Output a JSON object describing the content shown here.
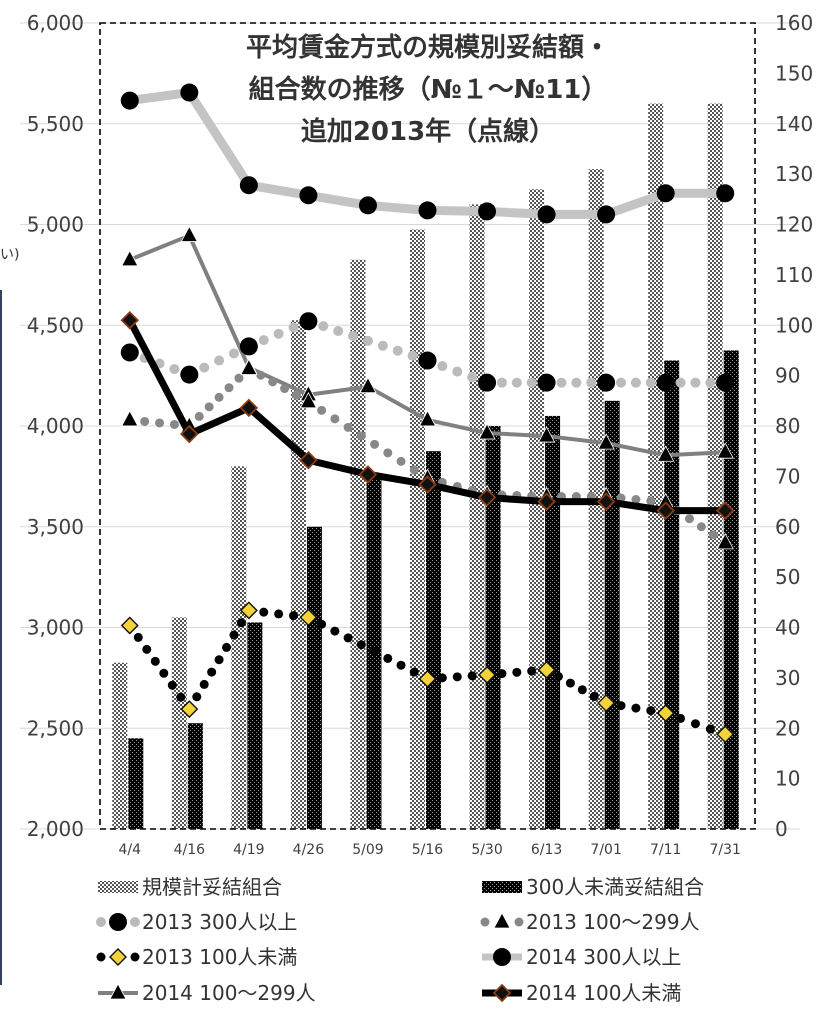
{
  "chart_data": {
    "type": "bar+line",
    "title_lines": [
      "平均賃金方式の規模別妥結額・",
      "組合数の推移（№１～№11）",
      "追加2013年（点線）"
    ],
    "categories": [
      "4/4",
      "4/16",
      "4/19",
      "4/26",
      "5/09",
      "5/16",
      "5/30",
      "6/13",
      "7/01",
      "7/11",
      "7/31"
    ],
    "y_left": {
      "min": 2000,
      "max": 6000,
      "step": 500,
      "ticks": [
        "2,000",
        "2,500",
        "3,000",
        "3,500",
        "4,000",
        "4,500",
        "5,000",
        "5,500",
        "6,000"
      ]
    },
    "y_right": {
      "min": 0,
      "max": 160,
      "step": 10,
      "ticks": [
        "0",
        "10",
        "20",
        "30",
        "40",
        "50",
        "60",
        "70",
        "80",
        "90",
        "100",
        "110",
        "120",
        "130",
        "140",
        "150",
        "160"
      ]
    },
    "bars": [
      {
        "name": "規模計妥結組合",
        "axis": "right",
        "pattern": "light",
        "values": [
          33,
          42,
          72,
          101,
          113,
          119,
          124,
          127,
          131,
          144,
          144
        ]
      },
      {
        "name": "300人未満妥結組合",
        "axis": "right",
        "pattern": "dark",
        "values": [
          18,
          21,
          41,
          60,
          70,
          75,
          80,
          82,
          85,
          93,
          95
        ]
      }
    ],
    "lines": [
      {
        "name": "2013 300人以上",
        "axis": "left",
        "style": "dash-gray",
        "marker": "circle-black",
        "points": [
          [
            0,
            4365
          ],
          [
            1,
            4255
          ],
          [
            2,
            4395
          ],
          [
            3,
            4520
          ],
          [
            5,
            4325
          ],
          [
            6,
            4215
          ],
          [
            7,
            4215
          ],
          [
            8,
            4215
          ],
          [
            9,
            4215
          ],
          [
            10,
            4215
          ]
        ]
      },
      {
        "name": "2013 100～299人",
        "axis": "left",
        "style": "dot-gray",
        "marker": "triangle-black",
        "points": [
          [
            0,
            4030
          ],
          [
            1,
            4000
          ],
          [
            2,
            4285
          ],
          [
            3,
            4120
          ],
          [
            5,
            3740
          ],
          [
            6,
            3660
          ],
          [
            7,
            3650
          ],
          [
            8,
            3650
          ],
          [
            9,
            3620
          ],
          [
            10,
            3420
          ]
        ]
      },
      {
        "name": "2013 100人未満",
        "axis": "left",
        "style": "dot-black",
        "marker": "diamond-yellow",
        "points": [
          [
            0,
            3010
          ],
          [
            1,
            2595
          ],
          [
            2,
            3085
          ],
          [
            3,
            3050
          ],
          [
            5,
            2745
          ],
          [
            6,
            2765
          ],
          [
            7,
            2790
          ],
          [
            8,
            2625
          ],
          [
            9,
            2575
          ],
          [
            10,
            2470
          ]
        ]
      },
      {
        "name": "2014 300人以上",
        "axis": "left",
        "style": "solid-lightgray",
        "marker": "circle-black",
        "points": [
          [
            0,
            5615
          ],
          [
            1,
            5655
          ],
          [
            2,
            5195
          ],
          [
            3,
            5145
          ],
          [
            4,
            5095
          ],
          [
            5,
            5070
          ],
          [
            6,
            5065
          ],
          [
            7,
            5050
          ],
          [
            8,
            5050
          ],
          [
            9,
            5155
          ],
          [
            10,
            5155
          ]
        ]
      },
      {
        "name": "2014 100～299人",
        "axis": "left",
        "style": "solid-gray",
        "marker": "triangle-black",
        "points": [
          [
            0,
            4825
          ],
          [
            1,
            4945
          ],
          [
            2,
            4290
          ],
          [
            3,
            4155
          ],
          [
            4,
            4195
          ],
          [
            5,
            4030
          ],
          [
            6,
            3965
          ],
          [
            7,
            3950
          ],
          [
            8,
            3915
          ],
          [
            9,
            3855
          ],
          [
            10,
            3870
          ]
        ]
      },
      {
        "name": "2014 100人未満",
        "axis": "left",
        "style": "solid-black-thick",
        "marker": "diamond-brown",
        "points": [
          [
            0,
            4525
          ],
          [
            1,
            3960
          ],
          [
            2,
            4090
          ],
          [
            3,
            3830
          ],
          [
            4,
            3760
          ],
          [
            5,
            3710
          ],
          [
            6,
            3645
          ],
          [
            7,
            3625
          ],
          [
            8,
            3625
          ],
          [
            9,
            3580
          ],
          [
            10,
            3580
          ]
        ]
      }
    ],
    "legend": {
      "placement": "bottom",
      "rows": [
        [
          "規模計妥結組合",
          "300人未満妥結組合"
        ],
        [
          "2013 300人以上",
          "2013 100～299人"
        ],
        [
          "2013 100人未満",
          "2014 300人以上"
        ],
        [
          "2014 100～299人",
          "2014 100人未満"
        ]
      ]
    },
    "grid": "horizontal",
    "side_fragment": "い)"
  },
  "colors": {
    "bar_light": "#777777",
    "bar_dark": "#111111",
    "line_2013_top": "#bbbbbb",
    "line_2013_mid": "#888888",
    "line_2014_top": "#c4c4c4",
    "line_2014_mid": "#808080",
    "marker_black": "#000000",
    "diamond_yellow": "#f4d23a",
    "diamond_brown": "#8a3b12",
    "grid": "#d9d9d9",
    "axis_text": "#404040",
    "title_text": "#333333"
  }
}
